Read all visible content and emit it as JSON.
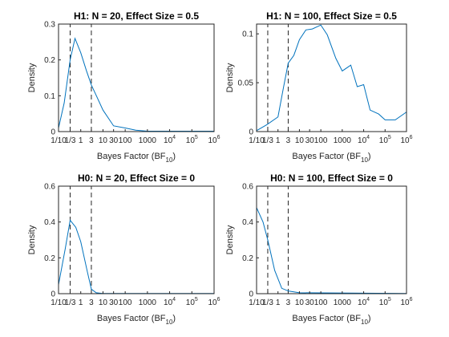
{
  "chart_data": [
    {
      "type": "line",
      "title": "H1: N = 20, Effect Size = 0.5",
      "xlabel": "Bayes Factor (BF",
      "xlabel_sub": "10",
      "xlabel_end": ")",
      "ylabel": "Density",
      "xscale": "log",
      "xlim": [
        0.1,
        1000000
      ],
      "ylim": [
        0,
        0.3
      ],
      "yticks": [
        0,
        0.1,
        0.2,
        0.3
      ],
      "ytick_labels": [
        "0",
        "0.1",
        "0.2",
        "0.3"
      ],
      "xticks": [
        {
          "value": 0.1,
          "base": "1/10",
          "sup": ""
        },
        {
          "value": 0.333,
          "base": "1/3",
          "sup": ""
        },
        {
          "value": 1,
          "base": "1",
          "sup": ""
        },
        {
          "value": 3,
          "base": "3",
          "sup": ""
        },
        {
          "value": 10,
          "base": "10",
          "sup": ""
        },
        {
          "value": 30,
          "base": "30",
          "sup": ""
        },
        {
          "value": 100,
          "base": "100",
          "sup": ""
        },
        {
          "value": 1000,
          "base": "1000",
          "sup": ""
        },
        {
          "value": 10000,
          "base": "10",
          "sup": "4"
        },
        {
          "value": 100000,
          "base": "10",
          "sup": "5"
        },
        {
          "value": 1000000,
          "base": "10",
          "sup": "6"
        }
      ],
      "vlines": [
        0.333,
        3
      ],
      "series": [
        {
          "color": "#0072BD",
          "x": [
            0.1,
            0.18,
            0.333,
            0.55,
            1,
            1.8,
            3,
            5.5,
            10,
            30,
            100,
            300,
            1000,
            10000,
            100000,
            1000000
          ],
          "y": [
            0.01,
            0.08,
            0.2,
            0.26,
            0.22,
            0.17,
            0.13,
            0.095,
            0.06,
            0.016,
            0.01,
            0.004,
            0.001,
            0.001,
            0.001,
            0.001
          ]
        }
      ]
    },
    {
      "type": "line",
      "title": "H1: N = 100, Effect Size = 0.5",
      "xlabel": "Bayes Factor (BF",
      "xlabel_sub": "10",
      "xlabel_end": ")",
      "ylabel": "Density",
      "xscale": "log",
      "xlim": [
        0.1,
        1000000
      ],
      "ylim": [
        0,
        0.11
      ],
      "yticks": [
        0,
        0.05,
        0.1
      ],
      "ytick_labels": [
        "0",
        "0.05",
        "0.1"
      ],
      "xticks": [
        {
          "value": 0.1,
          "base": "1/10",
          "sup": ""
        },
        {
          "value": 0.333,
          "base": "1/3",
          "sup": ""
        },
        {
          "value": 1,
          "base": "1",
          "sup": ""
        },
        {
          "value": 3,
          "base": "3",
          "sup": ""
        },
        {
          "value": 10,
          "base": "10",
          "sup": ""
        },
        {
          "value": 30,
          "base": "30",
          "sup": ""
        },
        {
          "value": 100,
          "base": "100",
          "sup": ""
        },
        {
          "value": 1000,
          "base": "1000",
          "sup": ""
        },
        {
          "value": 10000,
          "base": "10",
          "sup": "4"
        },
        {
          "value": 100000,
          "base": "10",
          "sup": "5"
        },
        {
          "value": 1000000,
          "base": "10",
          "sup": "6"
        }
      ],
      "vlines": [
        0.333,
        3
      ],
      "series": [
        {
          "color": "#0072BD",
          "x": [
            0.1,
            0.3,
            1,
            1.8,
            3,
            5.5,
            10,
            20,
            40,
            100,
            200,
            500,
            1000,
            2500,
            5000,
            10000,
            20000,
            50000,
            100000,
            300000,
            1000000
          ],
          "y": [
            0.001,
            0.007,
            0.015,
            0.045,
            0.07,
            0.078,
            0.094,
            0.104,
            0.105,
            0.109,
            0.099,
            0.075,
            0.062,
            0.068,
            0.046,
            0.048,
            0.022,
            0.018,
            0.012,
            0.012,
            0.02
          ]
        }
      ]
    },
    {
      "type": "line",
      "title": "H0: N = 20, Effect Size = 0",
      "xlabel": "Bayes Factor (BF",
      "xlabel_sub": "10",
      "xlabel_end": ")",
      "ylabel": "Density",
      "xscale": "log",
      "xlim": [
        0.1,
        1000000
      ],
      "ylim": [
        0,
        0.6
      ],
      "yticks": [
        0,
        0.2,
        0.4,
        0.6
      ],
      "ytick_labels": [
        "0",
        "0.2",
        "0.4",
        "0.6"
      ],
      "xticks": [
        {
          "value": 0.1,
          "base": "1/10",
          "sup": ""
        },
        {
          "value": 0.333,
          "base": "1/3",
          "sup": ""
        },
        {
          "value": 1,
          "base": "1",
          "sup": ""
        },
        {
          "value": 3,
          "base": "3",
          "sup": ""
        },
        {
          "value": 10,
          "base": "10",
          "sup": ""
        },
        {
          "value": 30,
          "base": "30",
          "sup": ""
        },
        {
          "value": 100,
          "base": "100",
          "sup": ""
        },
        {
          "value": 1000,
          "base": "1000",
          "sup": ""
        },
        {
          "value": 10000,
          "base": "10",
          "sup": "4"
        },
        {
          "value": 100000,
          "base": "10",
          "sup": "5"
        },
        {
          "value": 1000000,
          "base": "10",
          "sup": "6"
        }
      ],
      "vlines": [
        0.333,
        3
      ],
      "series": [
        {
          "color": "#0072BD",
          "x": [
            0.1,
            0.2,
            0.333,
            0.6,
            1,
            2,
            3,
            5,
            10,
            1000000
          ],
          "y": [
            0.05,
            0.25,
            0.41,
            0.37,
            0.29,
            0.12,
            0.025,
            0.005,
            0.001,
            0.001
          ]
        }
      ]
    },
    {
      "type": "line",
      "title": "H0: N = 100, Effect Size = 0",
      "xlabel": "Bayes Factor (BF",
      "xlabel_sub": "10",
      "xlabel_end": ")",
      "ylabel": "Density",
      "xscale": "log",
      "xlim": [
        0.1,
        1000000
      ],
      "ylim": [
        0,
        0.6
      ],
      "yticks": [
        0,
        0.2,
        0.4,
        0.6
      ],
      "ytick_labels": [
        "0",
        "0.2",
        "0.4",
        "0.6"
      ],
      "xticks": [
        {
          "value": 0.1,
          "base": "1/10",
          "sup": ""
        },
        {
          "value": 0.333,
          "base": "1/3",
          "sup": ""
        },
        {
          "value": 1,
          "base": "1",
          "sup": ""
        },
        {
          "value": 3,
          "base": "3",
          "sup": ""
        },
        {
          "value": 10,
          "base": "10",
          "sup": ""
        },
        {
          "value": 30,
          "base": "30",
          "sup": ""
        },
        {
          "value": 100,
          "base": "100",
          "sup": ""
        },
        {
          "value": 1000,
          "base": "1000",
          "sup": ""
        },
        {
          "value": 10000,
          "base": "10",
          "sup": "4"
        },
        {
          "value": 100000,
          "base": "10",
          "sup": "5"
        },
        {
          "value": 1000000,
          "base": "10",
          "sup": "6"
        }
      ],
      "vlines": [
        0.333,
        3
      ],
      "series": [
        {
          "color": "#0072BD",
          "x": [
            0.1,
            0.2,
            0.333,
            0.7,
            1.5,
            3,
            10,
            1000000
          ],
          "y": [
            0.48,
            0.4,
            0.3,
            0.13,
            0.03,
            0.015,
            0.005,
            0.001
          ]
        }
      ]
    }
  ]
}
